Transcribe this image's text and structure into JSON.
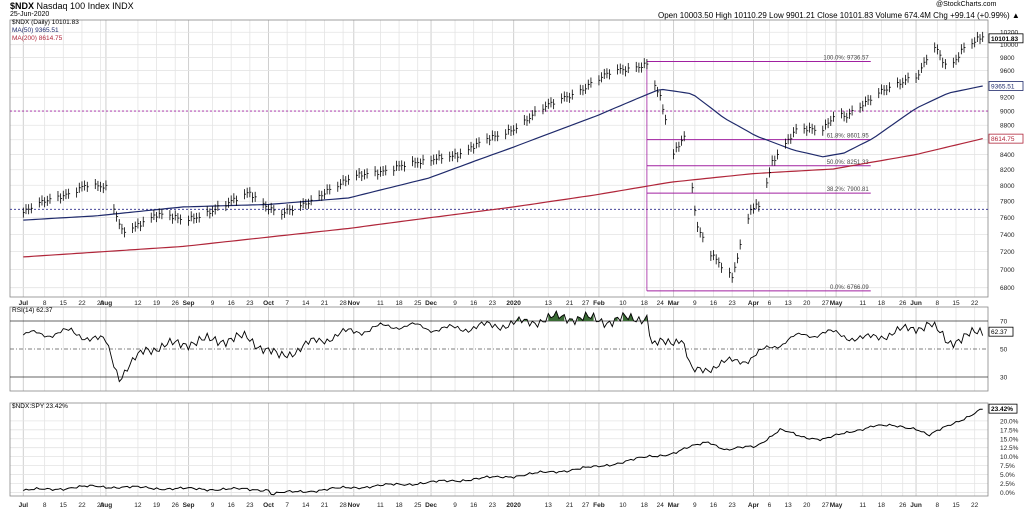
{
  "header": {
    "symbol": "$NDX",
    "name": "Nasdaq 100 Index INDX",
    "date": "25-Jun-2020",
    "ohlc": "Open 10003.50  High 10110.29  Low 9901.21  Close 10101.83  Volume 674.4M  Chg +99.14 (+0.99%) ▲",
    "watermark": "@StockCharts.com"
  },
  "legend": {
    "price": "$NDX (Daily) 10101.83",
    "ma50": "MA(50) 9365.51",
    "ma200": "MA(200) 8614.75"
  },
  "colors": {
    "price": "#000000",
    "ma50": "#1f2a6b",
    "ma200": "#b0263a",
    "fib": "#a020a0",
    "rsi_fill": "#3a6b35",
    "grid": "#e4e4e4"
  },
  "chart_data": [
    {
      "type": "line",
      "panel": "price",
      "scale": "log",
      "ylim": [
        6700,
        10400
      ],
      "yticks": [
        "6800",
        "7000",
        "7200",
        "7400",
        "7600",
        "7800",
        "8000",
        "8200",
        "8400",
        "8600",
        "8800",
        "9000",
        "9200",
        "9400",
        "9600",
        "9800",
        "10000",
        "10200"
      ],
      "series": [
        {
          "name": "$NDX (Daily) 10101.83",
          "style": "ohlc-bars",
          "points": [
            [
              "2020-06-30",
              7660
            ],
            [
              "2020-07-09",
              7800
            ],
            [
              "2020-07-23",
              8000
            ],
            [
              "2020-07-31",
              7950
            ],
            [
              "2020-08-06",
              7450
            ],
            [
              "2020-08-19",
              7620
            ],
            [
              "2020-08-29",
              7580
            ],
            [
              "2020-09-13",
              7720
            ],
            [
              "2020-09-23",
              7920
            ],
            [
              "2020-10-04",
              7630
            ],
            [
              "2020-10-11",
              7700
            ],
            [
              "2020-10-22",
              7950
            ],
            [
              "2020-11-02",
              8100
            ],
            [
              "2020-11-17",
              8250
            ],
            [
              "2020-11-28",
              8280
            ],
            [
              "2020-12-04",
              8390
            ],
            [
              "2020-12-12",
              8420
            ],
            [
              "2020-12-31",
              8770
            ],
            [
              "2021-01-18",
              9180
            ],
            [
              "2021-02-06",
              9560
            ],
            [
              "2021-02-19",
              9720
            ],
            [
              "2021-02-24",
              9180
            ],
            [
              "2021-03-01",
              8380
            ],
            [
              "2021-03-05",
              8640
            ],
            [
              "2021-03-10",
              7500
            ],
            [
              "2021-03-15",
              7200
            ],
            [
              "2021-03-20",
              6990
            ],
            [
              "2021-03-23",
              6890
            ],
            [
              "2021-03-30",
              7700
            ],
            [
              "2021-04-03",
              7800
            ],
            [
              "2021-04-07",
              8320
            ],
            [
              "2021-04-16",
              8710
            ],
            [
              "2021-04-26",
              8760
            ],
            [
              "2021-05-01",
              9000
            ],
            [
              "2021-05-05",
              8920
            ],
            [
              "2021-05-11",
              9060
            ],
            [
              "2021-05-18",
              9300
            ],
            [
              "2021-05-22",
              9400
            ],
            [
              "2021-06-01",
              9510
            ],
            [
              "2021-06-06",
              9940
            ],
            [
              "2021-06-08",
              9900
            ],
            [
              "2021-06-12",
              9620
            ],
            [
              "2021-06-18",
              9980
            ],
            [
              "2021-06-23",
              10070
            ],
            [
              "2021-06-25",
              10101.83
            ]
          ]
        },
        {
          "name": "MA(50) 9365.51",
          "points": [
            [
              "2020-06-30",
              7570
            ],
            [
              "2020-07-27",
              7620
            ],
            [
              "2020-08-29",
              7730
            ],
            [
              "2020-09-30",
              7760
            ],
            [
              "2020-10-30",
              7840
            ],
            [
              "2020-11-29",
              8090
            ],
            [
              "2020-12-31",
              8500
            ],
            [
              "2021-01-31",
              8930
            ],
            [
              "2021-02-24",
              9320
            ],
            [
              "2021-03-08",
              9250
            ],
            [
              "2021-03-20",
              8900
            ],
            [
              "2021-04-01",
              8650
            ],
            [
              "2021-04-15",
              8460
            ],
            [
              "2021-04-26",
              8370
            ],
            [
              "2021-05-04",
              8420
            ],
            [
              "2021-05-15",
              8620
            ],
            [
              "2021-05-31",
              9040
            ],
            [
              "2021-06-12",
              9260
            ],
            [
              "2021-06-25",
              9365.51
            ]
          ]
        },
        {
          "name": "MA(200) 8614.75",
          "points": [
            [
              "2020-06-30",
              7140
            ],
            [
              "2020-08-29",
              7260
            ],
            [
              "2020-10-30",
              7470
            ],
            [
              "2020-12-31",
              7730
            ],
            [
              "2021-01-31",
              7880
            ],
            [
              "2021-02-28",
              8040
            ],
            [
              "2021-03-31",
              8150
            ],
            [
              "2021-04-30",
              8210
            ],
            [
              "2021-05-31",
              8400
            ],
            [
              "2021-06-25",
              8614.75
            ]
          ]
        }
      ],
      "fib_levels": [
        {
          "label": "100.0%: 9736.57",
          "value": 9736.57
        },
        {
          "label": "61.8%: 8601.95",
          "value": 8601.95
        },
        {
          "label": "50.0%: 8251.33",
          "value": 8251.33
        },
        {
          "label": "38.2%: 7900.81",
          "value": 7900.81
        },
        {
          "label": "0.0%: 6766.09",
          "value": 6766.09
        }
      ],
      "hlines": [
        9000,
        7700
      ],
      "last_labels": [
        "10101.83",
        "9365.51",
        "8614.75"
      ]
    },
    {
      "type": "line",
      "panel": "rsi",
      "title": "RSI(14) 62.37",
      "ylim": [
        20,
        80
      ],
      "yticks": [
        "30",
        "50",
        "70"
      ],
      "overbought": 70,
      "oversold": 30,
      "series": [
        {
          "name": "RSI(14)",
          "points": [
            [
              "2020-06-30",
              60
            ],
            [
              "2020-07-18",
              62
            ],
            [
              "2020-07-31",
              55
            ],
            [
              "2020-08-05",
              30
            ],
            [
              "2020-08-15",
              50
            ],
            [
              "2020-09-01",
              55
            ],
            [
              "2020-09-22",
              58
            ],
            [
              "2020-10-04",
              44
            ],
            [
              "2020-10-17",
              55
            ],
            [
              "2020-10-30",
              62
            ],
            [
              "2020-11-17",
              67
            ],
            [
              "2020-12-06",
              64
            ],
            [
              "2020-12-31",
              68
            ],
            [
              "2021-01-19",
              73
            ],
            [
              "2021-02-05",
              70
            ],
            [
              "2021-02-19",
              73
            ],
            [
              "2021-02-21",
              52
            ],
            [
              "2021-03-04",
              58
            ],
            [
              "2021-03-08",
              33
            ],
            [
              "2021-03-18",
              39
            ],
            [
              "2021-03-29",
              43
            ],
            [
              "2021-04-13",
              57
            ],
            [
              "2021-04-26",
              62
            ],
            [
              "2021-05-12",
              57
            ],
            [
              "2021-05-28",
              64
            ],
            [
              "2021-06-05",
              68
            ],
            [
              "2021-06-12",
              55
            ],
            [
              "2021-06-25",
              62.37
            ]
          ]
        }
      ],
      "last_label": "62.37"
    },
    {
      "type": "line",
      "panel": "ratio",
      "title": "$NDX:SPY 23.42%",
      "ylim": [
        -1,
        25
      ],
      "yticks": [
        "0.0%",
        "2.5%",
        "5.0%",
        "7.5%",
        "10.0%",
        "12.5%",
        "15.0%",
        "17.5%",
        "20.0%"
      ],
      "series": [
        {
          "name": "$NDX:SPY",
          "points": [
            [
              "2020-06-30",
              0.5
            ],
            [
              "2020-07-27",
              1.7
            ],
            [
              "2020-08-28",
              1.0
            ],
            [
              "2020-09-30",
              0.8
            ],
            [
              "2020-10-01",
              -0.4
            ],
            [
              "2020-10-30",
              1.3
            ],
            [
              "2020-11-30",
              2.8
            ],
            [
              "2020-12-31",
              4.6
            ],
            [
              "2021-01-31",
              7.1
            ],
            [
              "2021-02-20",
              10.0
            ],
            [
              "2021-03-01",
              11.0
            ],
            [
              "2021-03-14",
              14.3
            ],
            [
              "2021-03-21",
              11.8
            ],
            [
              "2021-04-01",
              13.0
            ],
            [
              "2021-04-10",
              17.5
            ],
            [
              "2021-04-18",
              15.5
            ],
            [
              "2021-04-26",
              15.0
            ],
            [
              "2021-05-05",
              16.5
            ],
            [
              "2021-05-15",
              18.8
            ],
            [
              "2021-05-31",
              18.0
            ],
            [
              "2021-06-05",
              16.0
            ],
            [
              "2021-06-12",
              18.5
            ],
            [
              "2021-06-25",
              23.42
            ]
          ]
        }
      ],
      "last_label": "23.42%"
    }
  ],
  "xaxis": {
    "ticks": [
      {
        "date": "2020-06-30",
        "label": "Jul",
        "bold": true
      },
      {
        "date": "2020-07-08",
        "label": "8"
      },
      {
        "date": "2020-07-15",
        "label": "15"
      },
      {
        "date": "2020-07-22",
        "label": "22"
      },
      {
        "date": "2020-07-29",
        "label": "29"
      },
      {
        "date": "2020-07-31",
        "label": "Aug",
        "bold": true
      },
      {
        "date": "2020-08-12",
        "label": "12"
      },
      {
        "date": "2020-08-19",
        "label": "19"
      },
      {
        "date": "2020-08-26",
        "label": "26"
      },
      {
        "date": "2020-08-31",
        "label": "Sep",
        "bold": true
      },
      {
        "date": "2020-09-09",
        "label": "9"
      },
      {
        "date": "2020-09-16",
        "label": "16"
      },
      {
        "date": "2020-09-23",
        "label": "23"
      },
      {
        "date": "2020-09-30",
        "label": "Oct",
        "bold": true
      },
      {
        "date": "2020-10-07",
        "label": "7"
      },
      {
        "date": "2020-10-14",
        "label": "14"
      },
      {
        "date": "2020-10-21",
        "label": "21"
      },
      {
        "date": "2020-10-28",
        "label": "28"
      },
      {
        "date": "2020-11-01",
        "label": "Nov",
        "bold": true
      },
      {
        "date": "2020-11-11",
        "label": "11"
      },
      {
        "date": "2020-11-18",
        "label": "18"
      },
      {
        "date": "2020-11-25",
        "label": "25"
      },
      {
        "date": "2020-11-30",
        "label": "Dec",
        "bold": true
      },
      {
        "date": "2020-12-09",
        "label": "9"
      },
      {
        "date": "2020-12-16",
        "label": "16"
      },
      {
        "date": "2020-12-23",
        "label": "23"
      },
      {
        "date": "2020-12-31",
        "label": "2020",
        "bold": true
      },
      {
        "date": "2021-01-13",
        "label": "13"
      },
      {
        "date": "2021-01-21",
        "label": "21"
      },
      {
        "date": "2021-01-27",
        "label": "27"
      },
      {
        "date": "2021-02-01",
        "label": "Feb",
        "bold": true
      },
      {
        "date": "2021-02-10",
        "label": "10"
      },
      {
        "date": "2021-02-18",
        "label": "18"
      },
      {
        "date": "2021-02-24",
        "label": "24"
      },
      {
        "date": "2021-03-01",
        "label": "Mar",
        "bold": true
      },
      {
        "date": "2021-03-09",
        "label": "9"
      },
      {
        "date": "2021-03-16",
        "label": "16"
      },
      {
        "date": "2021-03-23",
        "label": "23"
      },
      {
        "date": "2021-03-31",
        "label": "Apr",
        "bold": true
      },
      {
        "date": "2021-04-06",
        "label": "6"
      },
      {
        "date": "2021-04-13",
        "label": "13"
      },
      {
        "date": "2021-04-20",
        "label": "20"
      },
      {
        "date": "2021-04-27",
        "label": "27"
      },
      {
        "date": "2021-05-01",
        "label": "May",
        "bold": true
      },
      {
        "date": "2021-05-11",
        "label": "11"
      },
      {
        "date": "2021-05-18",
        "label": "18"
      },
      {
        "date": "2021-05-26",
        "label": "26"
      },
      {
        "date": "2021-05-31",
        "label": "Jun",
        "bold": true
      },
      {
        "date": "2021-06-08",
        "label": "8"
      },
      {
        "date": "2021-06-15",
        "label": "15"
      },
      {
        "date": "2021-06-22",
        "label": "22"
      }
    ]
  }
}
